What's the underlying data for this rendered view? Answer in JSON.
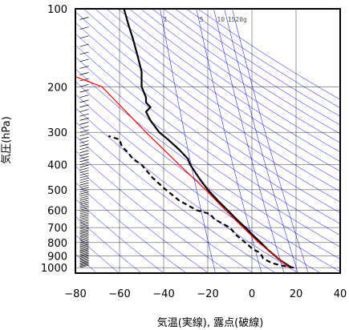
{
  "chart_data": {
    "type": "line",
    "xlabel": "気温(実線), 露点(破線)",
    "ylabel": "気圧(hPa)",
    "xlim": [
      -80,
      40
    ],
    "ylim": [
      1050,
      100
    ],
    "y_scale": "log",
    "x_ticks": [
      -80,
      -60,
      -40,
      -20,
      0,
      20,
      40
    ],
    "x_tick_labels": [
      "−80",
      "−60",
      "−40",
      "−20",
      "0",
      "20",
      "40"
    ],
    "y_ticks": [
      100,
      200,
      300,
      400,
      500,
      600,
      700,
      800,
      900,
      1000
    ],
    "grid": true,
    "mixing_ratio_labels": [
      "1",
      "5",
      "10",
      "15",
      "20g"
    ],
    "mixing_ratio_values": [
      1,
      5,
      10,
      15,
      20
    ],
    "series": [
      {
        "role": "temperature",
        "line_style": "solid",
        "color": "#000000",
        "pressure": [
          1000,
          975,
          950,
          925,
          900,
          850,
          800,
          750,
          700,
          650,
          600,
          550,
          500,
          450,
          400,
          380,
          350,
          320,
          300,
          270,
          250,
          240,
          230,
          220,
          200,
          175,
          150,
          130,
          115,
          100
        ],
        "temperature": [
          18,
          16,
          14,
          12,
          10.5,
          7,
          4,
          0.5,
          -3,
          -7,
          -11,
          -15.5,
          -20,
          -24,
          -28,
          -29,
          -33,
          -38,
          -42,
          -46,
          -48,
          -46,
          -48,
          -48,
          -50,
          -50,
          -52,
          -54,
          -56,
          -58
        ]
      },
      {
        "role": "dew_point",
        "line_style": "dashed",
        "color": "#000000",
        "pressure": [
          1000,
          980,
          960,
          940,
          920,
          900,
          870,
          850,
          800,
          750,
          700,
          650,
          620,
          600,
          550,
          500,
          450,
          400,
          380,
          360,
          340,
          320,
          310
        ],
        "temperature": [
          19,
          13,
          9,
          7,
          5,
          4.5,
          3,
          0.5,
          -3,
          -7,
          -10,
          -17,
          -19,
          -25,
          -33,
          -39,
          -45,
          -50,
          -54,
          -56,
          -59,
          -60,
          -65
        ]
      },
      {
        "role": "reference_adiabat",
        "line_style": "solid",
        "color": "#ff0000",
        "pressure": [
          1000,
          900,
          800,
          700,
          600,
          500,
          400,
          300,
          250,
          200,
          180
        ],
        "temperature": [
          17,
          10.5,
          3,
          -4,
          -12,
          -21,
          -33,
          -48,
          -57,
          -68,
          -82
        ]
      }
    ],
    "background_lines": {
      "dry_adiabats_color": "#0000ff",
      "moist_adiabats_color": "#0000ff",
      "isotherms_color": "#0000ff",
      "mixing_ratio_color": "#0000ff"
    },
    "wind_barbs_column": true
  }
}
